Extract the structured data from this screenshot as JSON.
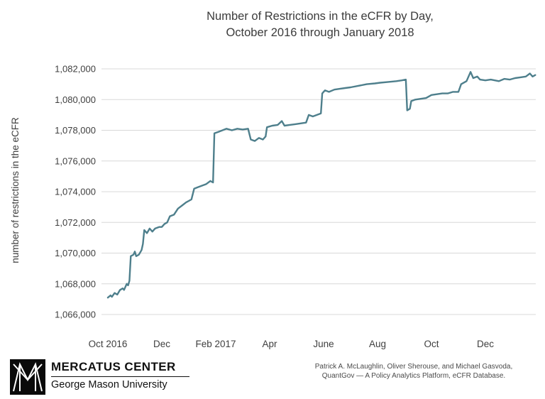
{
  "title": {
    "line1": "Number of Restrictions in the eCFR by Day,",
    "line2": "October 2016 through January 2018"
  },
  "chart_data": {
    "type": "line",
    "title": "Number of Restrictions in the eCFR by Day, October 2016 through January 2018",
    "xlabel": "",
    "ylabel": "number of restrictions in the eCFR",
    "ylim": [
      1066000,
      1082000
    ],
    "y_tick_step": 2000,
    "y_ticks": [
      1082000,
      1080000,
      1078000,
      1076000,
      1074000,
      1072000,
      1070000,
      1068000,
      1066000
    ],
    "x_ticks": [
      {
        "month": 0,
        "label": "Oct 2016"
      },
      {
        "month": 2,
        "label": "Dec"
      },
      {
        "month": 4,
        "label": "Feb 2017"
      },
      {
        "month": 6,
        "label": "Apr"
      },
      {
        "month": 8,
        "label": "June"
      },
      {
        "month": 10,
        "label": "Aug"
      },
      {
        "month": 12,
        "label": "Oct"
      },
      {
        "month": 14,
        "label": "Dec"
      }
    ],
    "x_range_months": [
      0,
      16
    ],
    "grid": "horizontal",
    "legend": "none",
    "line_color": "#4e7f8c",
    "gridline_color": "#d8d8d8",
    "series": [
      {
        "name": "number of restrictions in the eCFR",
        "points": [
          [
            0.0,
            1067100
          ],
          [
            0.1,
            1067250
          ],
          [
            0.15,
            1067150
          ],
          [
            0.25,
            1067400
          ],
          [
            0.35,
            1067300
          ],
          [
            0.45,
            1067600
          ],
          [
            0.55,
            1067700
          ],
          [
            0.6,
            1067600
          ],
          [
            0.7,
            1068000
          ],
          [
            0.75,
            1067900
          ],
          [
            0.8,
            1068200
          ],
          [
            0.85,
            1069800
          ],
          [
            0.95,
            1069900
          ],
          [
            1.0,
            1070100
          ],
          [
            1.05,
            1069800
          ],
          [
            1.15,
            1069900
          ],
          [
            1.25,
            1070200
          ],
          [
            1.3,
            1070600
          ],
          [
            1.35,
            1071500
          ],
          [
            1.45,
            1071300
          ],
          [
            1.55,
            1071600
          ],
          [
            1.65,
            1071400
          ],
          [
            1.75,
            1071600
          ],
          [
            1.9,
            1071700
          ],
          [
            2.0,
            1071700
          ],
          [
            2.1,
            1071900
          ],
          [
            2.2,
            1072000
          ],
          [
            2.3,
            1072400
          ],
          [
            2.45,
            1072500
          ],
          [
            2.6,
            1072900
          ],
          [
            2.75,
            1073100
          ],
          [
            2.9,
            1073300
          ],
          [
            3.0,
            1073400
          ],
          [
            3.1,
            1073500
          ],
          [
            3.2,
            1074200
          ],
          [
            3.35,
            1074300
          ],
          [
            3.5,
            1074400
          ],
          [
            3.65,
            1074500
          ],
          [
            3.8,
            1074700
          ],
          [
            3.9,
            1074600
          ],
          [
            3.95,
            1077800
          ],
          [
            4.1,
            1077900
          ],
          [
            4.25,
            1078000
          ],
          [
            4.4,
            1078100
          ],
          [
            4.6,
            1078000
          ],
          [
            4.8,
            1078100
          ],
          [
            5.0,
            1078050
          ],
          [
            5.2,
            1078100
          ],
          [
            5.3,
            1077400
          ],
          [
            5.45,
            1077300
          ],
          [
            5.6,
            1077500
          ],
          [
            5.75,
            1077400
          ],
          [
            5.85,
            1077600
          ],
          [
            5.9,
            1078200
          ],
          [
            6.1,
            1078300
          ],
          [
            6.3,
            1078350
          ],
          [
            6.45,
            1078600
          ],
          [
            6.55,
            1078300
          ],
          [
            6.75,
            1078350
          ],
          [
            6.95,
            1078400
          ],
          [
            7.15,
            1078450
          ],
          [
            7.35,
            1078500
          ],
          [
            7.45,
            1079000
          ],
          [
            7.6,
            1078900
          ],
          [
            7.75,
            1079000
          ],
          [
            7.9,
            1079100
          ],
          [
            7.95,
            1080400
          ],
          [
            8.05,
            1080600
          ],
          [
            8.2,
            1080500
          ],
          [
            8.4,
            1080650
          ],
          [
            8.6,
            1080700
          ],
          [
            8.8,
            1080750
          ],
          [
            9.0,
            1080800
          ],
          [
            9.3,
            1080900
          ],
          [
            9.6,
            1081000
          ],
          [
            9.9,
            1081050
          ],
          [
            10.1,
            1081100
          ],
          [
            10.4,
            1081150
          ],
          [
            10.7,
            1081200
          ],
          [
            10.9,
            1081250
          ],
          [
            11.05,
            1081300
          ],
          [
            11.1,
            1079300
          ],
          [
            11.2,
            1079400
          ],
          [
            11.25,
            1079900
          ],
          [
            11.4,
            1080000
          ],
          [
            11.6,
            1080050
          ],
          [
            11.8,
            1080100
          ],
          [
            12.0,
            1080300
          ],
          [
            12.2,
            1080350
          ],
          [
            12.4,
            1080400
          ],
          [
            12.6,
            1080400
          ],
          [
            12.8,
            1080500
          ],
          [
            13.0,
            1080500
          ],
          [
            13.1,
            1081000
          ],
          [
            13.3,
            1081200
          ],
          [
            13.45,
            1081800
          ],
          [
            13.55,
            1081400
          ],
          [
            13.7,
            1081500
          ],
          [
            13.8,
            1081300
          ],
          [
            14.0,
            1081250
          ],
          [
            14.2,
            1081300
          ],
          [
            14.5,
            1081200
          ],
          [
            14.7,
            1081350
          ],
          [
            14.9,
            1081300
          ],
          [
            15.1,
            1081400
          ],
          [
            15.3,
            1081450
          ],
          [
            15.5,
            1081500
          ],
          [
            15.65,
            1081700
          ],
          [
            15.75,
            1081500
          ],
          [
            15.85,
            1081600
          ]
        ]
      }
    ]
  },
  "footer": {
    "org_name": "MERCATUS CENTER",
    "org_sub": "George Mason University",
    "credit_line1": "Patrick A. McLaughlin, Oliver Sherouse, and Michael Gasvoda,",
    "credit_line2": "QuantGov — A Policy Analytics Platform, eCFR Database."
  }
}
